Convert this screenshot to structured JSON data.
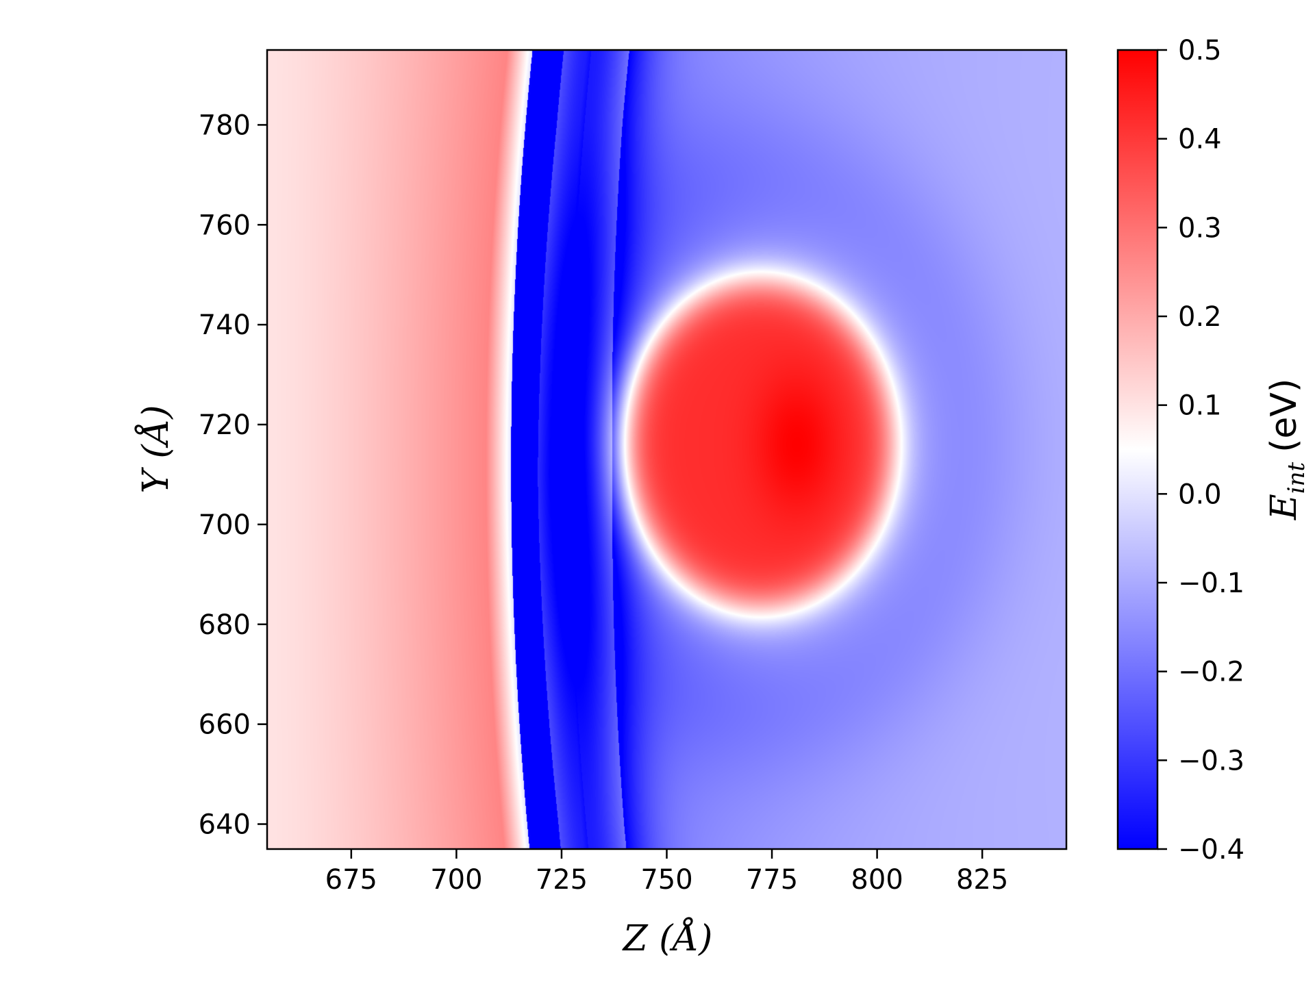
{
  "chart_data": {
    "type": "heatmap",
    "title": "",
    "xlabel": "Z (Å)",
    "ylabel": "Y (Å)",
    "colorbar_label_symbol": "E",
    "colorbar_label_subscript": "int",
    "colorbar_label_unit": "(eV)",
    "xlim": [
      655,
      845
    ],
    "ylim": [
      635,
      795
    ],
    "x_ticks": [
      675,
      700,
      725,
      750,
      775,
      800,
      825
    ],
    "x_tick_labels": [
      "675",
      "700",
      "725",
      "750",
      "775",
      "800",
      "825"
    ],
    "y_ticks": [
      640,
      660,
      680,
      700,
      720,
      740,
      760,
      780
    ],
    "y_tick_labels": [
      "640",
      "660",
      "680",
      "700",
      "720",
      "740",
      "760",
      "780"
    ],
    "color_range": [
      -0.4,
      0.5
    ],
    "colorbar_ticks": [
      0.5,
      0.4,
      0.3,
      0.2,
      0.1,
      0.0,
      -0.1,
      -0.2,
      -0.3,
      -0.4
    ],
    "colorbar_tick_labels": [
      "0.5",
      "0.4",
      "0.3",
      "0.2",
      "0.1",
      "0.0",
      "−0.1",
      "−0.2",
      "−0.3",
      "−0.4"
    ],
    "colormap": "bwr",
    "colormap_stops": [
      "#0000ff",
      "#ffffff",
      "#ff0000"
    ],
    "field_description": {
      "left_region": {
        "z_range": [
          655,
          712
        ],
        "value_range": [
          0.1,
          0.27
        ]
      },
      "zero_contour_z": 713,
      "blue_valley": {
        "z_center": 727,
        "y_center": 710,
        "min_value": -0.4
      },
      "red_blob": {
        "z_center": 772,
        "y_center": 716,
        "z_half_width": 32,
        "y_half_width": 33,
        "peak_value": 0.5
      },
      "far_right_value": -0.08
    }
  }
}
